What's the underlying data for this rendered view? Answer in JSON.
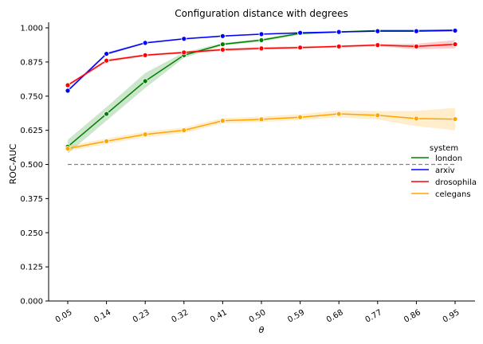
{
  "chart_data": {
    "type": "line",
    "title": "Configuration distance with degrees",
    "xlabel": "θ",
    "ylabel": "ROC-AUC",
    "categories": [
      "0.05",
      "0.14",
      "0.23",
      "0.32",
      "0.41",
      "0.50",
      "0.59",
      "0.68",
      "0.77",
      "0.86",
      "0.95"
    ],
    "x": [
      0.05,
      0.14,
      0.23,
      0.32,
      0.41,
      0.5,
      0.59,
      0.68,
      0.77,
      0.86,
      0.95
    ],
    "ylim": [
      0,
      1.0
    ],
    "yticks": [
      0.0,
      0.125,
      0.25,
      0.375,
      0.5,
      0.625,
      0.75,
      0.875,
      1.0
    ],
    "ytick_labels": [
      "0.000",
      "0.125",
      "0.250",
      "0.375",
      "0.500",
      "0.625",
      "0.750",
      "0.875",
      "1.000"
    ],
    "grid": false,
    "baseline": {
      "value": 0.5,
      "style": "dashed",
      "color": "#808080"
    },
    "legend": {
      "title": "system",
      "placement": "center-right"
    },
    "series": [
      {
        "name": "london",
        "color": "#008000",
        "values": [
          0.565,
          0.685,
          0.805,
          0.9,
          0.94,
          0.955,
          0.98,
          0.985,
          0.99,
          0.99,
          0.992
        ],
        "lower": [
          0.54,
          0.66,
          0.78,
          0.89,
          0.935,
          0.95,
          0.975,
          0.982,
          0.988,
          0.988,
          0.99
        ],
        "upper": [
          0.59,
          0.71,
          0.835,
          0.91,
          0.945,
          0.96,
          0.985,
          0.988,
          0.992,
          0.992,
          0.994
        ]
      },
      {
        "name": "arxiv",
        "color": "#0000ff",
        "values": [
          0.77,
          0.905,
          0.945,
          0.96,
          0.97,
          0.977,
          0.982,
          0.985,
          0.988,
          0.988,
          0.99
        ],
        "lower": [
          0.765,
          0.9,
          0.942,
          0.957,
          0.967,
          0.975,
          0.98,
          0.983,
          0.986,
          0.986,
          0.988
        ],
        "upper": [
          0.775,
          0.91,
          0.948,
          0.963,
          0.973,
          0.979,
          0.984,
          0.987,
          0.99,
          0.99,
          0.992
        ]
      },
      {
        "name": "drosophila",
        "color": "#ff0000",
        "values": [
          0.79,
          0.88,
          0.9,
          0.91,
          0.92,
          0.925,
          0.928,
          0.932,
          0.937,
          0.932,
          0.94
        ],
        "lower": [
          0.785,
          0.875,
          0.896,
          0.906,
          0.915,
          0.92,
          0.924,
          0.928,
          0.932,
          0.922,
          0.925
        ],
        "upper": [
          0.795,
          0.885,
          0.904,
          0.914,
          0.925,
          0.93,
          0.932,
          0.936,
          0.942,
          0.942,
          0.955
        ]
      },
      {
        "name": "celegans",
        "color": "#ffa500",
        "values": [
          0.558,
          0.585,
          0.61,
          0.625,
          0.66,
          0.665,
          0.673,
          0.685,
          0.68,
          0.668,
          0.666
        ],
        "lower": [
          0.548,
          0.575,
          0.6,
          0.615,
          0.65,
          0.655,
          0.662,
          0.672,
          0.665,
          0.64,
          0.625
        ],
        "upper": [
          0.568,
          0.595,
          0.62,
          0.635,
          0.67,
          0.675,
          0.684,
          0.698,
          0.695,
          0.696,
          0.707
        ]
      }
    ]
  }
}
